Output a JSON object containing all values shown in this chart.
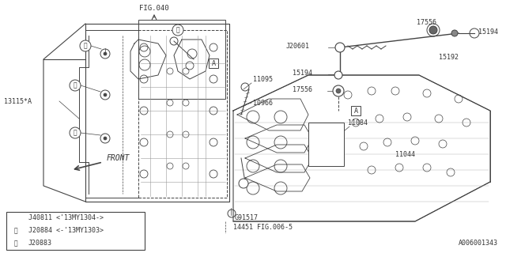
{
  "bg_color": "#ffffff",
  "line_color": "#444444",
  "text_color": "#333333",
  "fig040_text": "FIG.040",
  "front_text": "FRONT",
  "ref_text": "A006001343",
  "parts": {
    "13115A": "13115*A",
    "11095": "11095",
    "11084": "11084",
    "10966": "10966",
    "11044": "11044",
    "G91517": "G91517",
    "14451": "14451 FIG.006-5",
    "17556_top": "17556",
    "J20601": "J20601",
    "15194_top": "15194",
    "15194_mid": "15194",
    "15192": "15192",
    "17556_bot": "17556"
  },
  "legend": [
    {
      "num": "1",
      "text": "J20883"
    },
    {
      "num": "2",
      "text": "J20884 <-'13MY1303>"
    },
    {
      "num": "",
      "text": "J40811 <'13MY1304->"
    }
  ]
}
